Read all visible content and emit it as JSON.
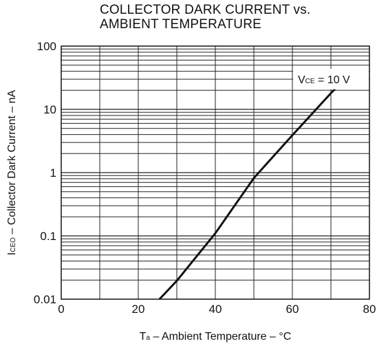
{
  "chart_data": {
    "type": "line",
    "title": "COLLECTOR DARK CURRENT vs.",
    "subtitle": "AMBIENT TEMPERATURE",
    "xlabel": {
      "symbol": "T",
      "sub": "a",
      "text": " – Ambient Temperature – °C"
    },
    "ylabel": {
      "symbol": "I",
      "sub": "CEO",
      "text": " – Collector Dark Current – nA"
    },
    "xlim": [
      0,
      80
    ],
    "ylim": [
      0.01,
      100
    ],
    "yscale": "log",
    "grid": true,
    "x_ticks": [
      "0",
      "20",
      "40",
      "60",
      "80"
    ],
    "y_ticks": [
      "0.01",
      "0.1",
      "1",
      "10",
      "100"
    ],
    "annotation": {
      "symbol": "V",
      "sub": "CE",
      "text": " = 10 V"
    },
    "series": [
      {
        "x": [
          25.5,
          30,
          40,
          50,
          60,
          70,
          75
        ],
        "y": [
          0.01,
          0.0195,
          0.11,
          0.82,
          3.9,
          18,
          37
        ]
      }
    ]
  }
}
